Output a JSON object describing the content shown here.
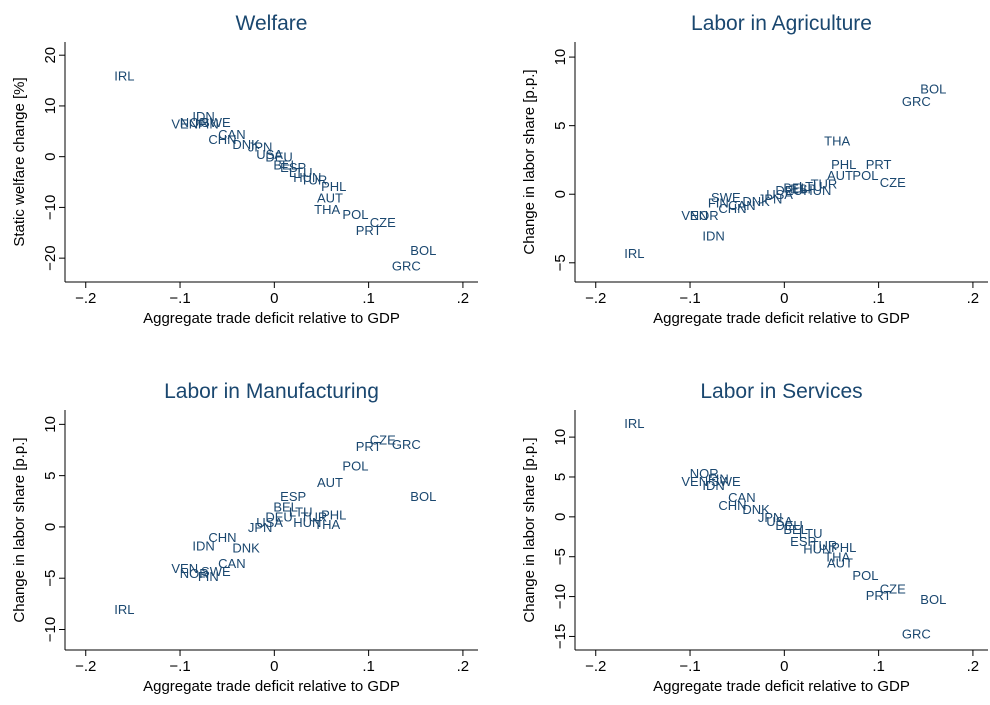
{
  "chart_data": [
    {
      "type": "scatter",
      "title": "Welfare",
      "xlabel": "Aggregate trade deficit relative to GDP",
      "ylabel": "Static welfare change [%]",
      "xlim": [
        -0.222,
        0.216
      ],
      "ylim": [
        -24.7,
        22.6
      ],
      "xticks": [
        {
          "value": -0.2,
          "label": "−.2"
        },
        {
          "value": -0.1,
          "label": "−.1"
        },
        0,
        {
          "value": 0.1,
          "label": ".1"
        },
        {
          "value": 0.2,
          "label": ".2"
        }
      ],
      "yticks": [
        {
          "value": -20,
          "label": "−20"
        },
        {
          "value": -10,
          "label": "−10"
        },
        0,
        10,
        20
      ],
      "series": [
        {
          "color": "#1a476f",
          "labels": [
            "IRL",
            "VEN",
            "NOR",
            "IDN",
            "FIN",
            "SWE",
            "CHN",
            "CAN",
            "DNK",
            "JPN",
            "USA",
            "DEU",
            "BEL",
            "ESP",
            "LTU",
            "HUN",
            "TUR",
            "PHL",
            "AUT",
            "THA",
            "POL",
            "CZE",
            "PRT",
            "BOL",
            "GRC"
          ],
          "x": [
            -0.159,
            -0.095,
            -0.085,
            -0.075,
            -0.07,
            -0.062,
            -0.055,
            -0.045,
            -0.03,
            -0.015,
            -0.005,
            0.005,
            0.012,
            0.02,
            0.028,
            0.035,
            0.042,
            0.063,
            0.059,
            0.056,
            0.086,
            0.115,
            0.1,
            0.158,
            0.14
          ],
          "values": [
            16,
            6.5,
            6.8,
            8,
            6.5,
            6.8,
            3.5,
            4.5,
            2.5,
            2,
            0.5,
            0,
            -1.5,
            -2,
            -3,
            -4,
            -4.5,
            -5.8,
            -8,
            -10.3,
            -11.3,
            -12.9,
            -14.5,
            -18.4,
            -21.4
          ]
        }
      ]
    },
    {
      "type": "scatter",
      "title": "Labor in Agriculture",
      "xlabel": "Aggregate trade deficit relative to GDP",
      "ylabel": "Change in labor share [p.p.]",
      "xlim": [
        -0.222,
        0.216
      ],
      "ylim": [
        -6.4,
        11.1
      ],
      "xticks": [
        {
          "value": -0.2,
          "label": "−.2"
        },
        {
          "value": -0.1,
          "label": "−.1"
        },
        0,
        {
          "value": 0.1,
          "label": ".1"
        },
        {
          "value": 0.2,
          "label": ".2"
        }
      ],
      "yticks": [
        {
          "value": -5,
          "label": "−5"
        },
        0,
        5,
        10
      ],
      "series": [
        {
          "color": "#1a476f",
          "labels": [
            "IRL",
            "VEN",
            "NOR",
            "IDN",
            "FIN",
            "SWE",
            "CHN",
            "CAN",
            "DNK",
            "JPN",
            "USA",
            "DEU",
            "BEL",
            "ESP",
            "LTU",
            "HUN",
            "TUR",
            "PHL",
            "AUT",
            "THA",
            "POL",
            "CZE",
            "PRT",
            "BOL",
            "GRC"
          ],
          "x": [
            -0.159,
            -0.095,
            -0.085,
            -0.075,
            -0.07,
            -0.062,
            -0.055,
            -0.045,
            -0.03,
            -0.015,
            -0.005,
            0.005,
            0.012,
            0.02,
            0.028,
            0.035,
            0.042,
            0.063,
            0.059,
            0.056,
            0.086,
            0.115,
            0.1,
            0.158,
            0.14
          ],
          "values": [
            -4.3,
            -1.5,
            -1.5,
            -3,
            -0.6,
            -0.2,
            -1,
            -0.8,
            -0.5,
            -0.3,
            0,
            0.3,
            0.5,
            0.4,
            0.6,
            0.3,
            0.8,
            2.2,
            1.4,
            3.9,
            1.4,
            0.9,
            2.2,
            7.7,
            6.8
          ]
        }
      ]
    },
    {
      "type": "scatter",
      "title": "Labor in Manufacturing",
      "xlabel": "Aggregate trade deficit relative to GDP",
      "ylabel": "Change in labor share [p.p.]",
      "xlim": [
        -0.222,
        0.216
      ],
      "ylim": [
        -12,
        11.4
      ],
      "xticks": [
        {
          "value": -0.2,
          "label": "−.2"
        },
        {
          "value": -0.1,
          "label": "−.1"
        },
        0,
        {
          "value": 0.1,
          "label": ".1"
        },
        {
          "value": 0.2,
          "label": ".2"
        }
      ],
      "yticks": [
        {
          "value": -10,
          "label": "−10"
        },
        {
          "value": -5,
          "label": "−5"
        },
        0,
        5,
        10
      ],
      "series": [
        {
          "color": "#1a476f",
          "labels": [
            "IRL",
            "VEN",
            "NOR",
            "IDN",
            "FIN",
            "SWE",
            "CHN",
            "CAN",
            "DNK",
            "JPN",
            "USA",
            "DEU",
            "BEL",
            "ESP",
            "LTU",
            "HUN",
            "TUR",
            "PHL",
            "AUT",
            "THA",
            "POL",
            "CZE",
            "PRT",
            "BOL",
            "GRC"
          ],
          "x": [
            -0.159,
            -0.095,
            -0.085,
            -0.075,
            -0.07,
            -0.062,
            -0.055,
            -0.045,
            -0.03,
            -0.015,
            -0.005,
            0.005,
            0.012,
            0.02,
            0.028,
            0.035,
            0.042,
            0.063,
            0.059,
            0.056,
            0.086,
            0.115,
            0.1,
            0.158,
            0.14
          ],
          "values": [
            -8,
            -4,
            -4.5,
            -1.8,
            -4.8,
            -4.3,
            -1,
            -3.5,
            -2,
            0,
            0.5,
            1,
            2,
            3,
            1.5,
            0.5,
            1,
            1.2,
            4.4,
            0.3,
            6,
            8.5,
            7.9,
            3,
            8.1
          ]
        }
      ]
    },
    {
      "type": "scatter",
      "title": "Labor in Services",
      "xlabel": "Aggregate trade deficit relative to GDP",
      "ylabel": "Change in labor share [p.p.]",
      "xlim": [
        -0.222,
        0.216
      ],
      "ylim": [
        -16.7,
        13.4
      ],
      "xticks": [
        {
          "value": -0.2,
          "label": "−.2"
        },
        {
          "value": -0.1,
          "label": "−.1"
        },
        0,
        {
          "value": 0.1,
          "label": ".1"
        },
        {
          "value": 0.2,
          "label": ".2"
        }
      ],
      "yticks": [
        {
          "value": -15,
          "label": "−15"
        },
        {
          "value": -10,
          "label": "−10"
        },
        {
          "value": -5,
          "label": "−5"
        },
        0,
        5,
        10
      ],
      "series": [
        {
          "color": "#1a476f",
          "labels": [
            "IRL",
            "VEN",
            "NOR",
            "IDN",
            "FIN",
            "SWE",
            "CHN",
            "CAN",
            "DNK",
            "JPN",
            "USA",
            "DEU",
            "BEL",
            "ESP",
            "LTU",
            "HUN",
            "TUR",
            "PHL",
            "AUT",
            "THA",
            "POL",
            "CZE",
            "PRT",
            "BOL",
            "GRC"
          ],
          "x": [
            -0.159,
            -0.095,
            -0.085,
            -0.075,
            -0.07,
            -0.062,
            -0.055,
            -0.045,
            -0.03,
            -0.015,
            -0.005,
            0.005,
            0.012,
            0.02,
            0.028,
            0.035,
            0.042,
            0.063,
            0.059,
            0.056,
            0.086,
            0.115,
            0.1,
            0.158,
            0.14
          ],
          "values": [
            11.8,
            4.5,
            5.5,
            4,
            4.8,
            4.5,
            1.5,
            2.5,
            1,
            0,
            -0.5,
            -1,
            -1.5,
            -3,
            -2,
            -4,
            -3.5,
            -3.8,
            -5.7,
            -5,
            -7.3,
            -9,
            -9.8,
            -10.3,
            -14.6
          ]
        }
      ]
    }
  ]
}
